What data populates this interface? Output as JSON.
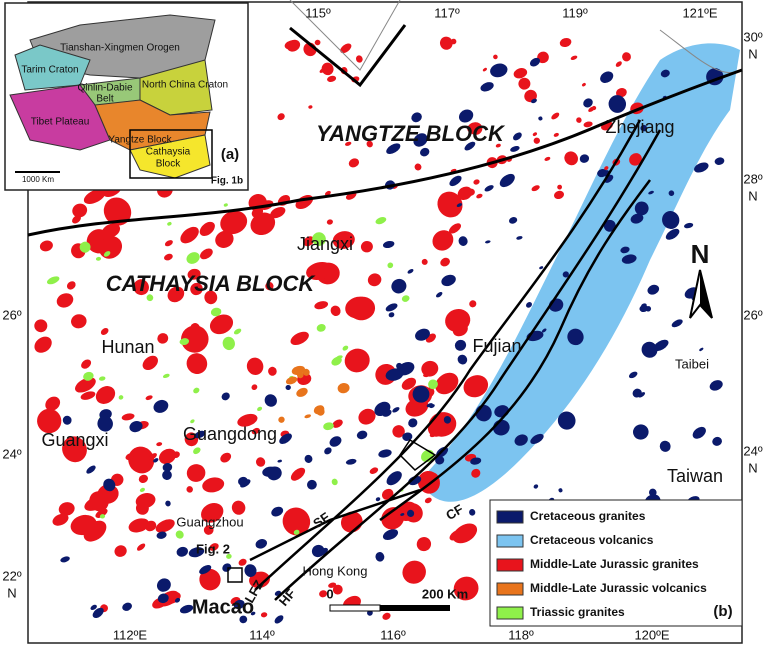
{
  "inset": {
    "labels": [
      "Tianshan-Xingmen Orogen",
      "Tarim Craton",
      "Qinlin-Dabie",
      "Belt",
      "North China Craton",
      "Tibet Plateau",
      "Yangtze Block",
      "Cathaysia",
      "Block"
    ],
    "panel_label": "(a)",
    "scale": "1000 Km",
    "figure_ref": "Fig. 1b"
  },
  "map": {
    "lon_ticks_top": [
      "115º",
      "117º",
      "119º",
      "121ºE"
    ],
    "lon_ticks_bottom": [
      "112ºE",
      "114º",
      "116º",
      "118º",
      "120ºE"
    ],
    "lat_ticks_left": [
      "26º",
      "24º",
      "22º",
      "N"
    ],
    "lat_ticks_right": [
      "30º",
      "N",
      "28º",
      "N",
      "26º",
      "24º",
      "N"
    ],
    "blocks": [
      "YANGTZE BLOCK",
      "CATHAYSIA BLOCK"
    ],
    "places": [
      "Zhejiang",
      "Jiangxi",
      "Hunan",
      "Fujian",
      "Guangxi",
      "Guangdong",
      "Taibei",
      "Taiwan",
      "Guangzhou",
      "Fig. 2",
      "Hong Kong",
      "Macao"
    ],
    "faults": [
      "SF",
      "LFZ",
      "HF",
      "CF"
    ],
    "north": "N",
    "scale": [
      "0",
      "200 Km"
    ],
    "panel_label": "(b)"
  },
  "legend": [
    {
      "label": "Cretaceous granites",
      "color": "#0b1a6b"
    },
    {
      "label": "Cretaceous volcanics",
      "color": "#7cc4f0"
    },
    {
      "label": "Middle-Late Jurassic granites",
      "color": "#e8141c"
    },
    {
      "label": "Middle-Late Jurassic volcanics",
      "color": "#e8741c"
    },
    {
      "label": "Triassic granites",
      "color": "#8ff04a"
    }
  ]
}
